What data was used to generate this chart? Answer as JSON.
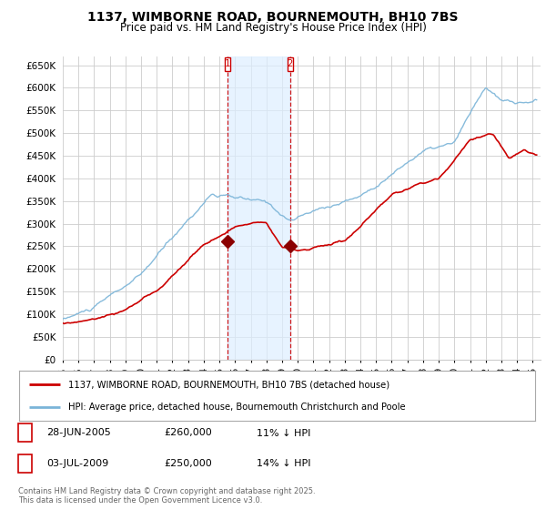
{
  "title_line1": "1137, WIMBORNE ROAD, BOURNEMOUTH, BH10 7BS",
  "title_line2": "Price paid vs. HM Land Registry's House Price Index (HPI)",
  "ylabel_ticks": [
    "£0",
    "£50K",
    "£100K",
    "£150K",
    "£200K",
    "£250K",
    "£300K",
    "£350K",
    "£400K",
    "£450K",
    "£500K",
    "£550K",
    "£600K",
    "£650K"
  ],
  "ytick_values": [
    0,
    50000,
    100000,
    150000,
    200000,
    250000,
    300000,
    350000,
    400000,
    450000,
    500000,
    550000,
    600000,
    650000
  ],
  "ylim": [
    0,
    670000
  ],
  "xlim_start": 1995.0,
  "xlim_end": 2025.5,
  "hpi_color": "#7ab4d8",
  "price_color": "#cc0000",
  "vline_color": "#cc0000",
  "shade_color": "#ddeeff",
  "grid_color": "#cccccc",
  "background_color": "#ffffff",
  "sale1_x": 2005.487,
  "sale1_y": 260000,
  "sale1_label": "1",
  "sale2_x": 2009.503,
  "sale2_y": 250000,
  "sale2_label": "2",
  "legend_line1": "1137, WIMBORNE ROAD, BOURNEMOUTH, BH10 7BS (detached house)",
  "legend_line2": "HPI: Average price, detached house, Bournemouth Christchurch and Poole",
  "table_row1": [
    "1",
    "28-JUN-2005",
    "£260,000",
    "11% ↓ HPI"
  ],
  "table_row2": [
    "2",
    "03-JUL-2009",
    "£250,000",
    "14% ↓ HPI"
  ],
  "footnote": "Contains HM Land Registry data © Crown copyright and database right 2025.\nThis data is licensed under the Open Government Licence v3.0.",
  "xtick_years": [
    1995,
    1996,
    1997,
    1998,
    1999,
    2000,
    2001,
    2002,
    2003,
    2004,
    2005,
    2006,
    2007,
    2008,
    2009,
    2010,
    2011,
    2012,
    2013,
    2014,
    2015,
    2016,
    2017,
    2018,
    2019,
    2020,
    2021,
    2022,
    2023,
    2024,
    2025
  ]
}
